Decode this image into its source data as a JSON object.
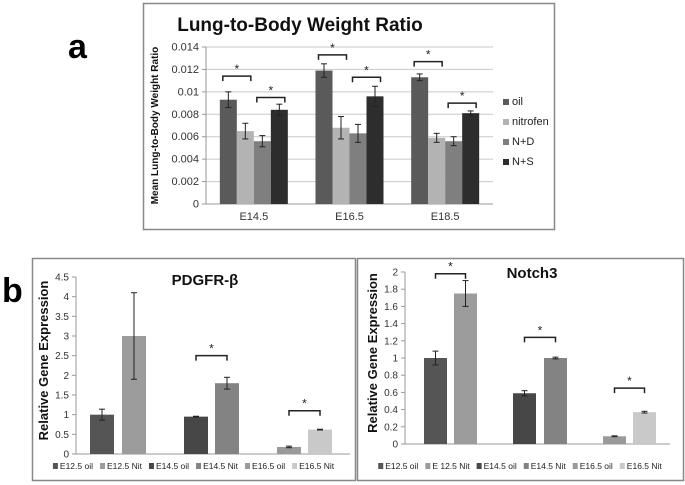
{
  "panel_labels": {
    "a": "a",
    "b": "b"
  },
  "chart_data": [
    {
      "id": "lung",
      "type": "bar",
      "title": "Lung-to-Body Weight Ratio",
      "ylabel": "Mean Lung-to-Body Weight Ratio",
      "xlabel": "",
      "ylim": [
        0,
        0.014
      ],
      "yticks": [
        "0",
        "0.002",
        "0.004",
        "0.006",
        "0.008",
        "0.01",
        "0.012",
        "0.014"
      ],
      "ytick_values": [
        0,
        0.002,
        0.004,
        0.006,
        0.008,
        0.01,
        0.012,
        0.014
      ],
      "grid": true,
      "legend": "right",
      "categories": [
        "E14.5",
        "E16.5",
        "E18.5"
      ],
      "series": [
        {
          "name": "oil",
          "color": "#5a5a5a",
          "values": [
            0.0093,
            0.0119,
            0.0113
          ],
          "errors": [
            0.0007,
            0.0006,
            0.0003
          ]
        },
        {
          "name": "nitrofen",
          "color": "#b3b3b3",
          "values": [
            0.0065,
            0.0068,
            0.0059
          ],
          "errors": [
            0.0007,
            0.001,
            0.0004
          ]
        },
        {
          "name": "N+D",
          "color": "#7f7f7f",
          "values": [
            0.0056,
            0.0063,
            0.0056
          ],
          "errors": [
            0.0005,
            0.0008,
            0.0004
          ]
        },
        {
          "name": "N+S",
          "color": "#2d2d2d",
          "values": [
            0.0084,
            0.0096,
            0.0081
          ],
          "errors": [
            0.0005,
            0.0009,
            0.0002
          ]
        }
      ],
      "significance": [
        {
          "category": 0,
          "from": 0,
          "to": 1,
          "y": 0.0114,
          "label": "*"
        },
        {
          "category": 0,
          "from": 2,
          "to": 3,
          "y": 0.0095,
          "label": "*"
        },
        {
          "category": 1,
          "from": 0,
          "to": 1,
          "y": 0.0133,
          "label": "*"
        },
        {
          "category": 1,
          "from": 2,
          "to": 3,
          "y": 0.0113,
          "label": "*"
        },
        {
          "category": 2,
          "from": 0,
          "to": 1,
          "y": 0.0127,
          "label": "*"
        },
        {
          "category": 2,
          "from": 2,
          "to": 3,
          "y": 0.009,
          "label": "*"
        }
      ]
    },
    {
      "id": "pdgfrb",
      "type": "bar",
      "title": "PDGFR-β",
      "ylabel": "Relative Gene Expression",
      "xlabel": "",
      "ylim": [
        0,
        4.5
      ],
      "yticks": [
        "0",
        "0.5",
        "1",
        "1.5",
        "2",
        "2.5",
        "3",
        "3.5",
        "4",
        "4.5"
      ],
      "ytick_values": [
        0,
        0.5,
        1,
        1.5,
        2,
        2.5,
        3,
        3.5,
        4,
        4.5
      ],
      "grid": false,
      "legend": "bottom",
      "bars": [
        {
          "name": "E12.5 oil",
          "color": "#555555",
          "value": 1.0,
          "error": 0.14
        },
        {
          "name": "E12.5 Nit",
          "color": "#9c9c9c",
          "value": 3.0,
          "error": 1.1
        },
        {
          "name": "E14.5 oil",
          "color": "#474747",
          "value": 0.95,
          "error": 0.01
        },
        {
          "name": "E14.5 Nit",
          "color": "#838383",
          "value": 1.8,
          "error": 0.15
        },
        {
          "name": "E16.5 oil",
          "color": "#9a9a9a",
          "value": 0.18,
          "error": 0.02
        },
        {
          "name": "E16.5 Nit",
          "color": "#c9c9c9",
          "value": 0.62,
          "error": 0.01
        }
      ],
      "significance": [
        {
          "from": 2,
          "to": 3,
          "y": 2.5,
          "label": "*"
        },
        {
          "from": 4,
          "to": 5,
          "y": 1.1,
          "label": "*"
        }
      ]
    },
    {
      "id": "notch3",
      "type": "bar",
      "title": "Notch3",
      "ylabel": "Relative Gene Expression",
      "xlabel": "",
      "ylim": [
        0,
        2
      ],
      "yticks": [
        "0",
        "0.2",
        "0.4",
        "0.6",
        "0.8",
        "1",
        "1.2",
        "1.4",
        "1.6",
        "1.8",
        "2"
      ],
      "ytick_values": [
        0,
        0.2,
        0.4,
        0.6,
        0.8,
        1,
        1.2,
        1.4,
        1.6,
        1.8,
        2
      ],
      "grid": false,
      "legend": "bottom",
      "bars": [
        {
          "name": "E12.5 oil",
          "color": "#555555",
          "value": 1.0,
          "error": 0.08
        },
        {
          "name": "E 12.5 Nit",
          "color": "#9c9c9c",
          "value": 1.75,
          "error": 0.15
        },
        {
          "name": "E14.5 oil",
          "color": "#474747",
          "value": 0.59,
          "error": 0.03
        },
        {
          "name": "E14.5 Nit",
          "color": "#838383",
          "value": 1.0,
          "error": 0.01
        },
        {
          "name": "E16.5 oil",
          "color": "#9a9a9a",
          "value": 0.09,
          "error": 0.005
        },
        {
          "name": "E16.5 Nit",
          "color": "#c9c9c9",
          "value": 0.37,
          "error": 0.01
        }
      ],
      "significance": [
        {
          "from": 0,
          "to": 1,
          "y": 1.98,
          "label": "*"
        },
        {
          "from": 2,
          "to": 3,
          "y": 1.24,
          "label": "*"
        },
        {
          "from": 4,
          "to": 5,
          "y": 0.65,
          "label": "*"
        }
      ]
    }
  ]
}
